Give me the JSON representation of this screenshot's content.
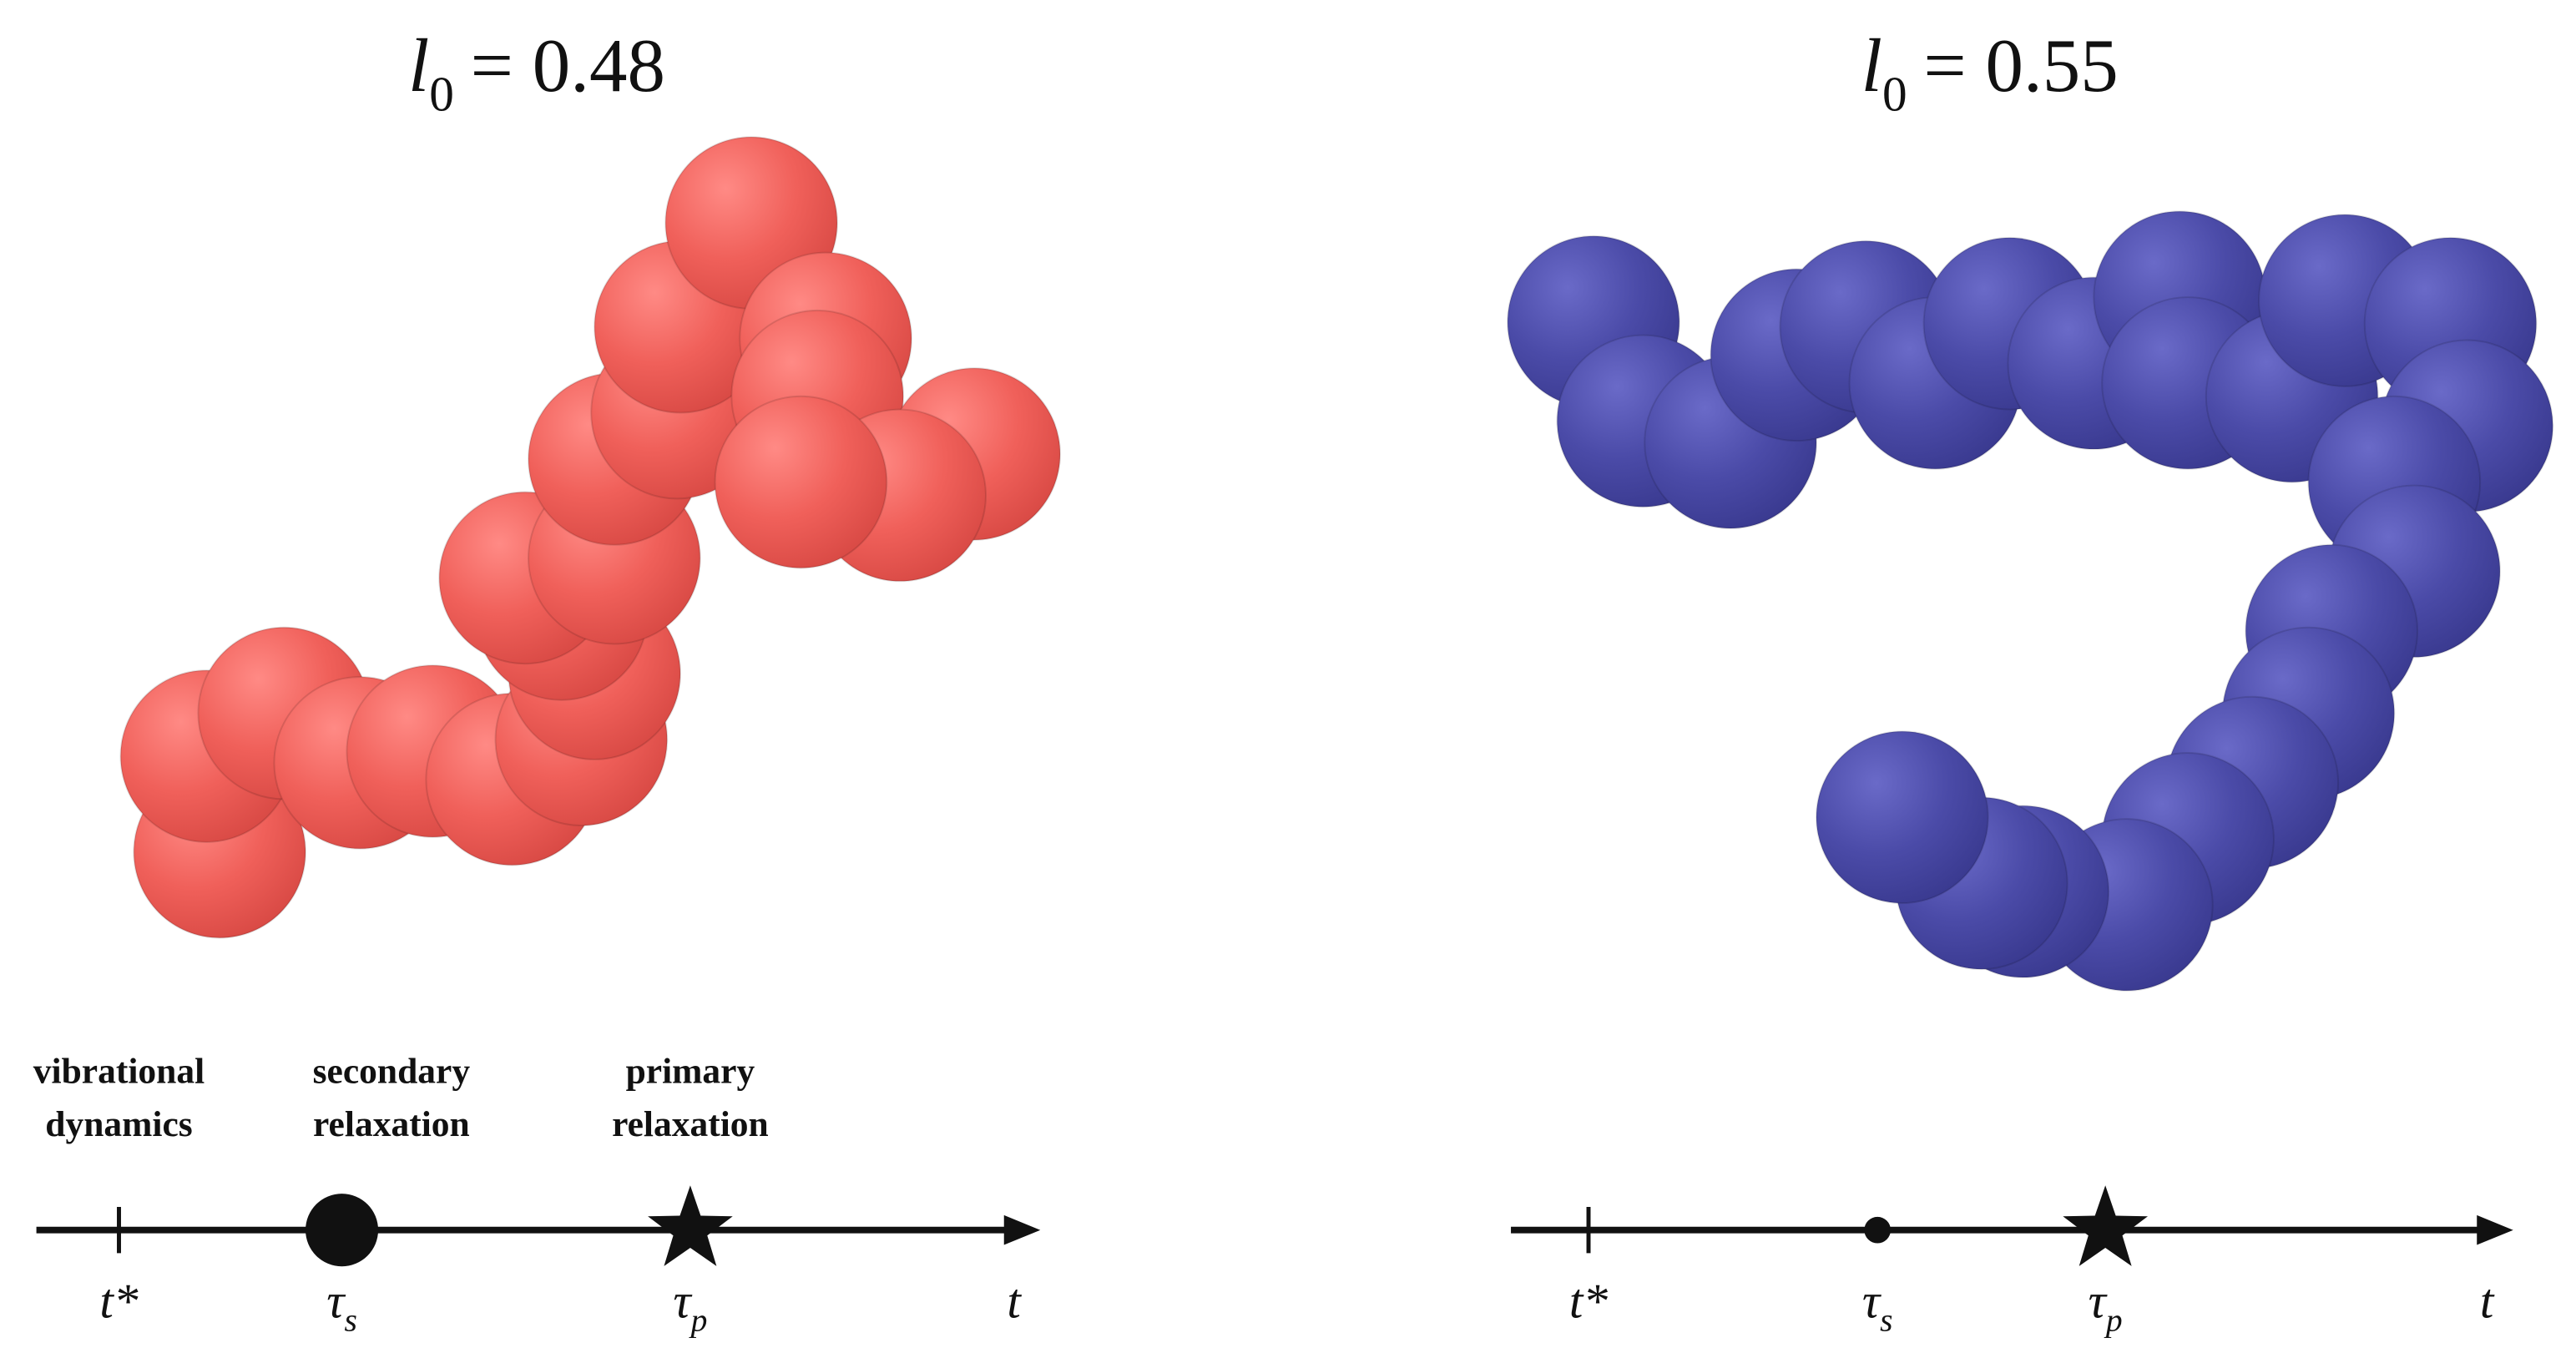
{
  "panels": [
    {
      "title": {
        "symbol": "l",
        "subscript": "0",
        "rest": "= 0.48"
      },
      "annotations": [
        [
          "vibrational",
          "dynamics"
        ],
        [
          "secondary",
          "relaxation"
        ],
        [
          "primary",
          "relaxation"
        ]
      ],
      "axis": {
        "t_star": "t*",
        "tau_s": {
          "symbol": "τ",
          "subscript": "s"
        },
        "tau_p": {
          "symbol": "τ",
          "subscript": "p"
        },
        "t": "t"
      }
    },
    {
      "title": {
        "symbol": "l",
        "subscript": "0",
        "rest": "= 0.55"
      },
      "axis": {
        "t_star": "t*",
        "tau_s": {
          "symbol": "τ",
          "subscript": "s"
        },
        "tau_p": {
          "symbol": "τ",
          "subscript": "p"
        },
        "t": "t"
      }
    }
  ]
}
